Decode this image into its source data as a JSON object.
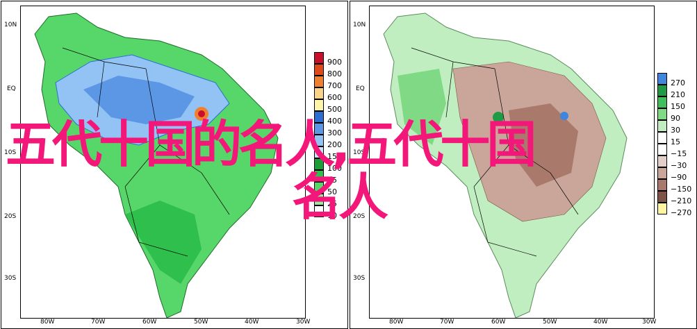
{
  "panels": [
    {
      "id": "precip",
      "lat_labels": [
        "10N",
        "EQ",
        "10S",
        "20S",
        "30S"
      ],
      "lon_labels": [
        "80W",
        "70W",
        "60W",
        "50W",
        "40W",
        "30W"
      ],
      "legend": [
        {
          "label": "900",
          "color": "#c8102e"
        },
        {
          "label": "800",
          "color": "#e04a1a"
        },
        {
          "label": "700",
          "color": "#f08030"
        },
        {
          "label": "600",
          "color": "#f9d38a"
        },
        {
          "label": "500",
          "color": "#fdf6a8"
        },
        {
          "label": "400",
          "color": "#2c6fd1"
        },
        {
          "label": "300",
          "color": "#5c97e6"
        },
        {
          "label": "200",
          "color": "#93c3f4"
        },
        {
          "label": "150",
          "color": "#c6e3fb"
        },
        {
          "label": "100",
          "color": "#1d9d3a"
        },
        {
          "label": "75",
          "color": "#2fbf4d"
        },
        {
          "label": "50",
          "color": "#57d66a"
        },
        {
          "label": "25",
          "color": "#9be89f"
        },
        {
          "label": "10",
          "color": "#ffffff"
        }
      ]
    },
    {
      "id": "anomaly",
      "lat_labels": [
        "10N",
        "EQ",
        "10S",
        "20S",
        "30S"
      ],
      "lon_labels": [
        "80W",
        "70W",
        "60W",
        "50W",
        "40W",
        "30W"
      ],
      "legend": [
        {
          "label": "270",
          "color": "#3f86dc"
        },
        {
          "label": "210",
          "color": "#1f9a45"
        },
        {
          "label": "150",
          "color": "#3fbf5c"
        },
        {
          "label": "90",
          "color": "#7fd985"
        },
        {
          "label": "30",
          "color": "#c0eec0"
        },
        {
          "label": "15",
          "color": "#ffffff"
        },
        {
          "label": "−15",
          "color": "#ffffff"
        },
        {
          "label": "−30",
          "color": "#e3cfc8"
        },
        {
          "label": "−90",
          "color": "#caa59a"
        },
        {
          "label": "−150",
          "color": "#a97a6c"
        },
        {
          "label": "−210",
          "color": "#7d5446"
        },
        {
          "label": "−270",
          "color": "#fff4a0"
        }
      ]
    }
  ],
  "overlay": {
    "line1": "五代十国的名人,五代十国",
    "line2": "名人",
    "color": "#f4177a"
  }
}
